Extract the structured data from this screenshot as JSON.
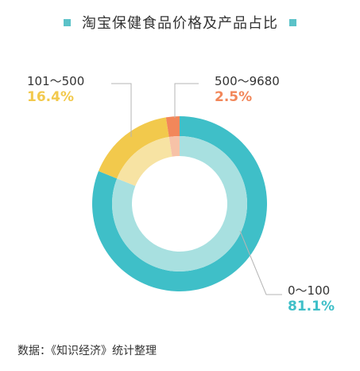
{
  "title": "淘宝保健食品价格及产品占比",
  "source_note": "数据：《知识经济》统计整理",
  "colors": {
    "marker": "#5bc2c8",
    "title": "#333333",
    "connector": "#b5b5b5"
  },
  "chart_data": {
    "type": "pie",
    "style": "donut",
    "title": "淘宝保健食品价格及产品占比",
    "series": [
      {
        "name": "",
        "categories": [
          "0～100",
          "101～500",
          "500～9680"
        ],
        "values": [
          81.1,
          16.4,
          2.5
        ],
        "value_labels": [
          "81.1%",
          "16.4%",
          "2.5%"
        ],
        "colors": [
          "#3fbfc8",
          "#f2c94c",
          "#f2875a"
        ],
        "inner_colors": [
          "#a8e0e0",
          "#f7e3a3",
          "#f7c2a7"
        ]
      }
    ]
  }
}
